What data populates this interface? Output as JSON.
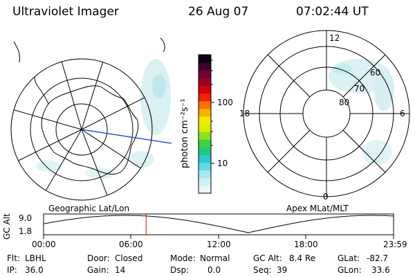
{
  "header": {
    "title": "Ultraviolet Imager",
    "date": "26 Aug 07",
    "time": "07:02:44 UT"
  },
  "colorbar": {
    "unit": "photon cm⁻²s⁻¹",
    "ticks": [
      "100",
      "10"
    ],
    "colors": [
      "#e8f8f8",
      "#d0f0f4",
      "#a8e8f0",
      "#60d8e8",
      "#30c8d0",
      "#20c880",
      "#40d040",
      "#90e020",
      "#d8f000",
      "#f8e800",
      "#f8b000",
      "#f87000",
      "#f02000",
      "#d00010",
      "#a00020",
      "#700030",
      "#400030",
      "#100010"
    ]
  },
  "left_map": {
    "caption": "Geographic Lat/Lon"
  },
  "right_map": {
    "caption": "Apex MLat/MLT",
    "mlt_labels": [
      "12",
      "18",
      "6",
      "0"
    ],
    "mlat_labels": [
      "60",
      "70",
      "80"
    ]
  },
  "orbit_plot": {
    "ylabel": "GC Alt",
    "yticks": [
      "9.0",
      "1.8"
    ],
    "xticks": [
      "00:00",
      "06:00",
      "12:00",
      "18:00",
      "23:59"
    ],
    "current_time_fraction": 0.293
  },
  "info": {
    "row1": [
      {
        "label": "Flt:",
        "value": "LBHL"
      },
      {
        "label": "Door:",
        "value": "Closed"
      },
      {
        "label": "Mode:",
        "value": "Normal"
      },
      {
        "label": "GC Alt:",
        "value": "8.4 Re"
      },
      {
        "label": "GLat:",
        "value": "-82.7"
      }
    ],
    "row2": [
      {
        "label": "IP:",
        "value": "36.0"
      },
      {
        "label": "Gain:",
        "value": "14"
      },
      {
        "label": "Dsp:",
        "value": "0.0"
      },
      {
        "label": "Seq:",
        "value": "39"
      },
      {
        "label": "GLon:",
        "value": "33.6"
      }
    ]
  }
}
